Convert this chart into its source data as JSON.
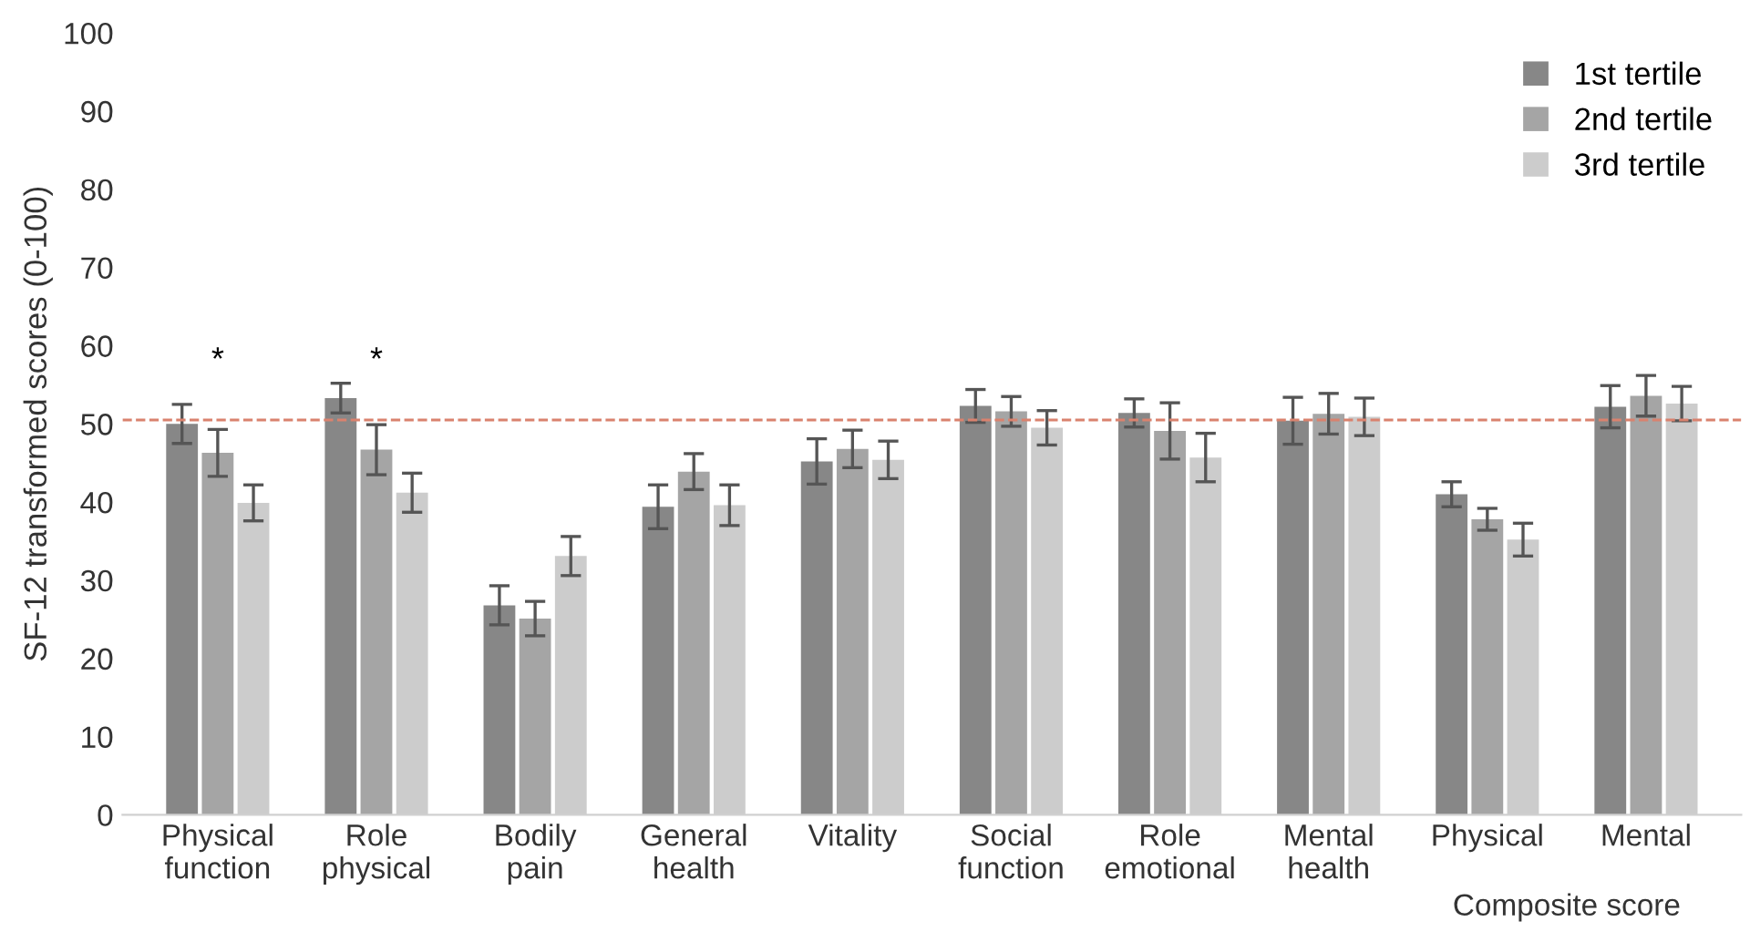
{
  "chart_data": {
    "type": "bar",
    "ylabel": "SF-12 transformed scores (0-100)",
    "categories": [
      "Physical\nfunction",
      "Role\nphysical",
      "Bodily\npain",
      "General\nhealth",
      "Vitality",
      "Social\nfunction",
      "Role\nemotional",
      "Mental\nhealth",
      "Physical",
      "Mental"
    ],
    "series": [
      {
        "name": "1st tertile",
        "color": "#878787",
        "values": [
          50.0,
          53.3,
          26.8,
          39.4,
          45.2,
          52.3,
          51.4,
          50.4,
          41.0,
          52.2
        ],
        "errors": [
          2.5,
          1.9,
          2.5,
          2.8,
          2.9,
          2.1,
          1.8,
          3.0,
          1.6,
          2.7
        ]
      },
      {
        "name": "2nd tertile",
        "color": "#a5a5a5",
        "values": [
          46.3,
          46.7,
          25.1,
          43.9,
          46.8,
          51.6,
          49.1,
          51.3,
          37.8,
          53.6
        ],
        "errors": [
          3.0,
          3.2,
          2.2,
          2.3,
          2.4,
          1.9,
          3.6,
          2.6,
          1.4,
          2.6
        ]
      },
      {
        "name": "3rd tertile",
        "color": "#cccccc",
        "values": [
          39.9,
          41.2,
          33.1,
          39.6,
          45.4,
          49.5,
          45.7,
          50.9,
          35.2,
          52.6
        ],
        "errors": [
          2.3,
          2.5,
          2.5,
          2.6,
          2.4,
          2.2,
          3.1,
          2.4,
          2.1,
          2.2
        ]
      }
    ],
    "ylim": [
      0,
      100
    ],
    "yticks": [
      0,
      10,
      20,
      30,
      40,
      50,
      60,
      70,
      80,
      90,
      100
    ],
    "ref_lines": [
      {
        "axis": "y",
        "value": 50.5,
        "color": "#d9826e",
        "line_style": "dashed"
      }
    ],
    "annotations": [
      "*",
      "*",
      "Composite score"
    ],
    "legend": "top right",
    "grid": false
  }
}
